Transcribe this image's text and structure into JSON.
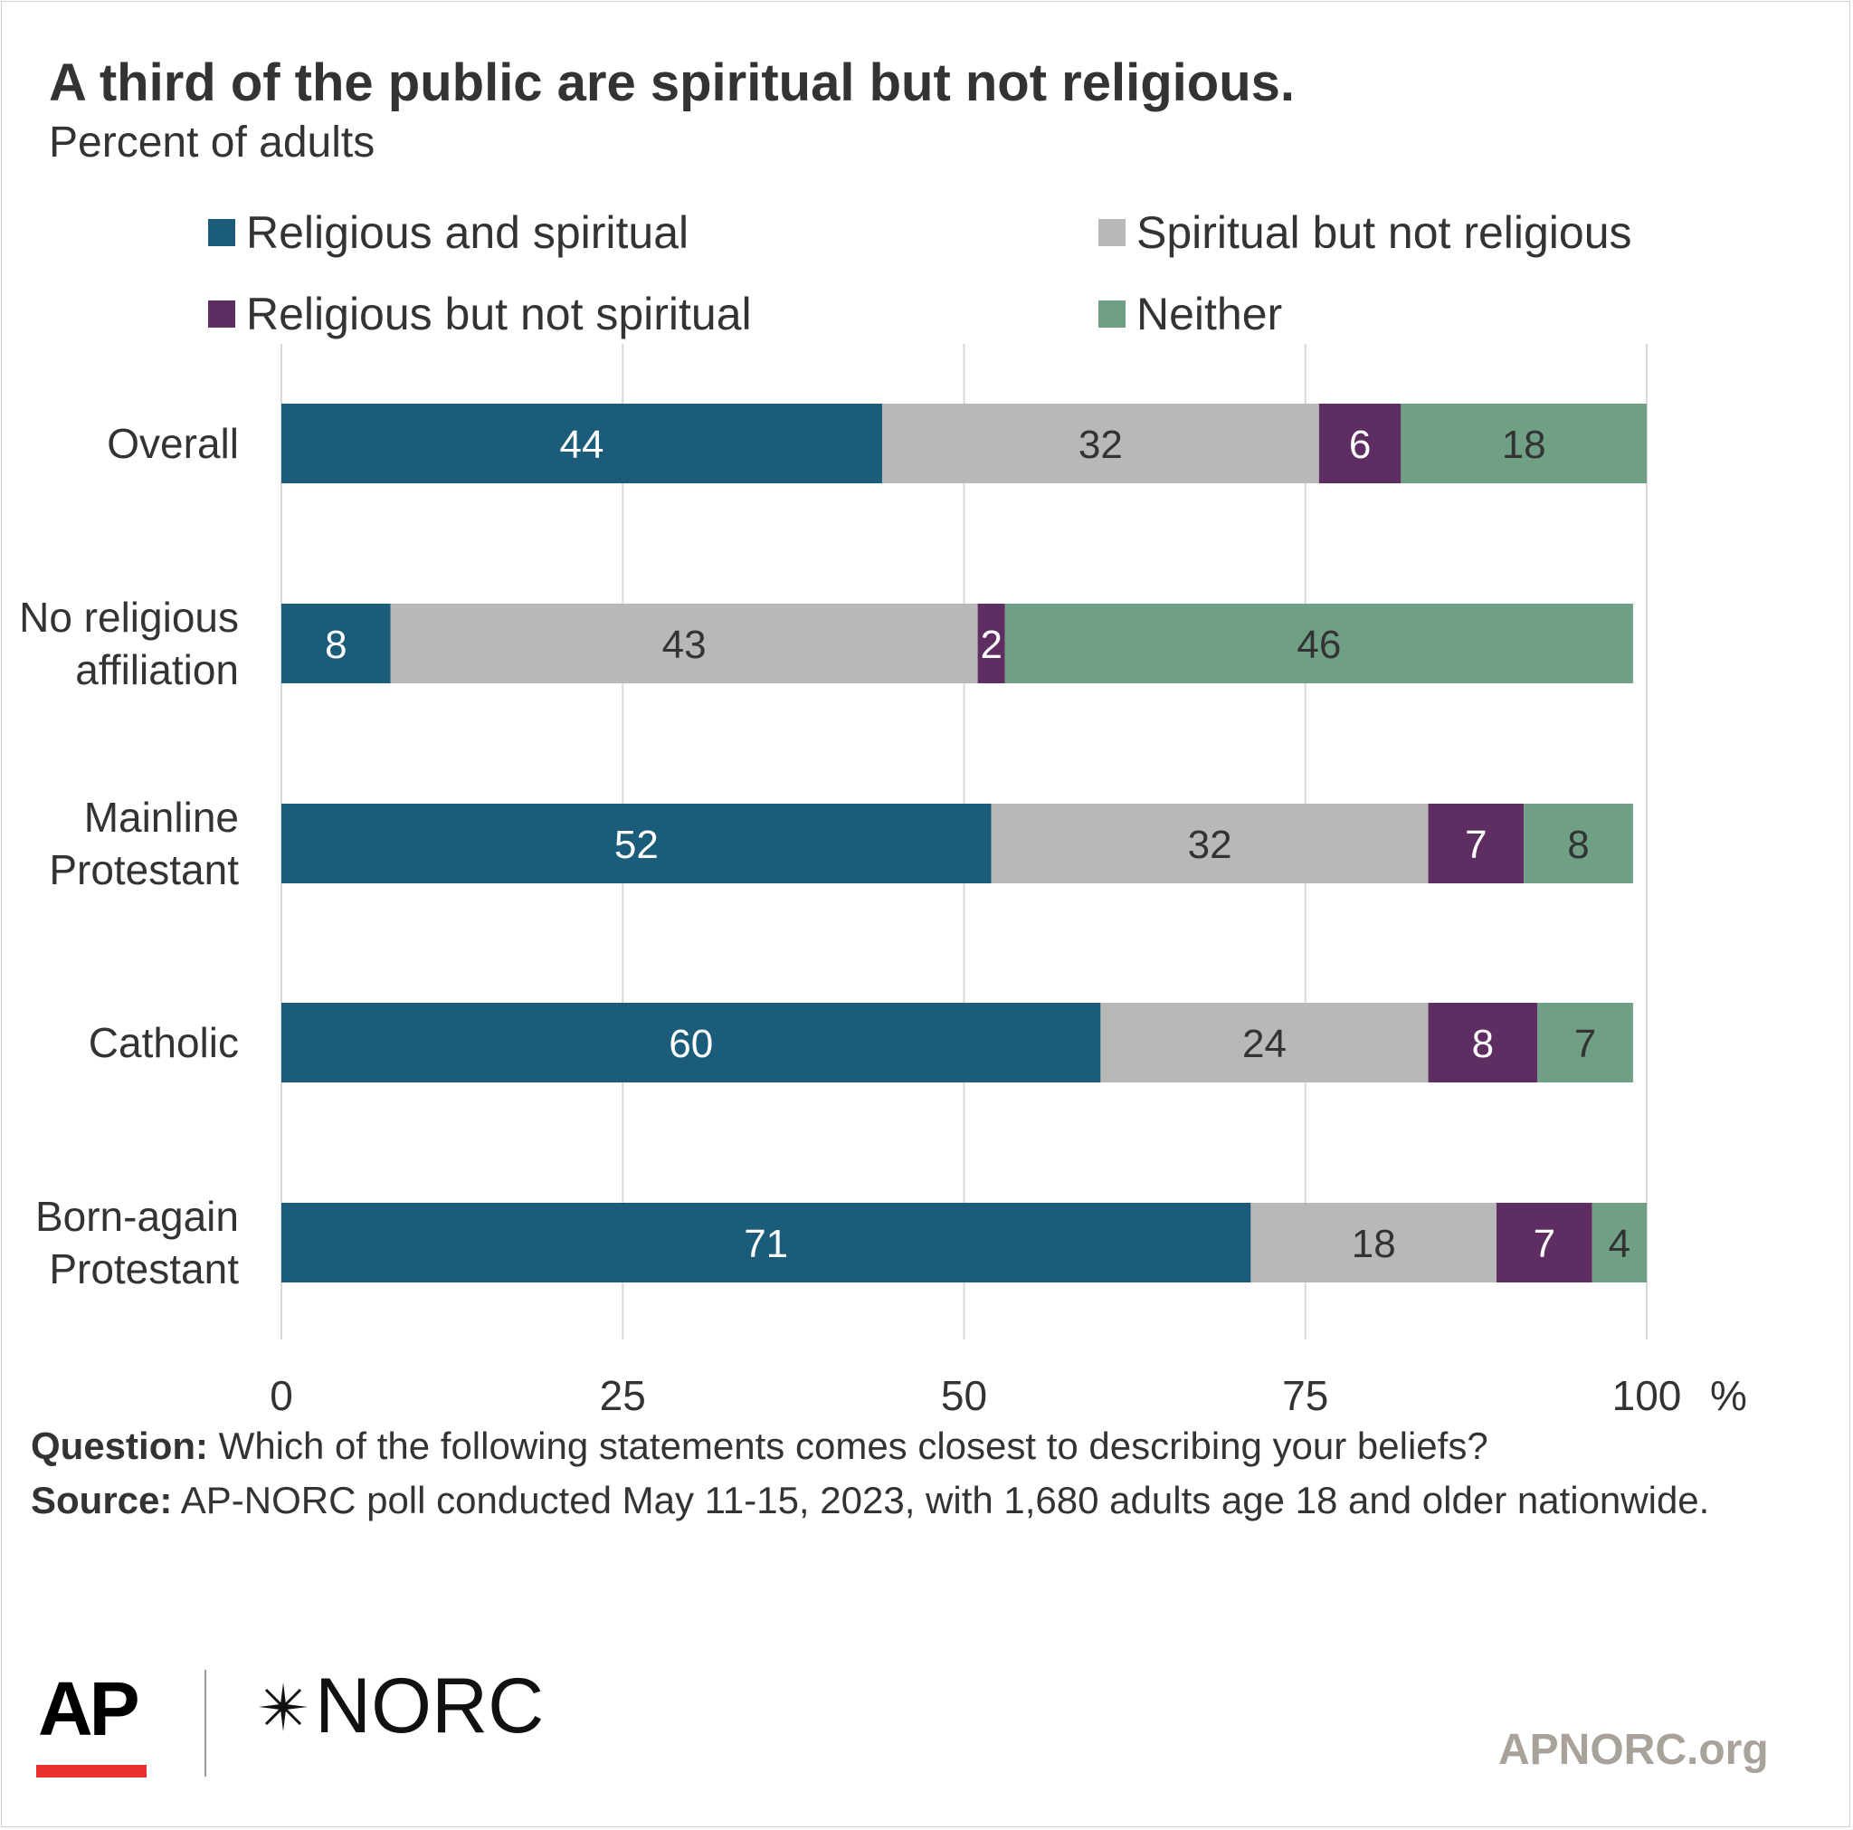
{
  "header": {
    "title": "A third of the public are spiritual but not religious.",
    "subtitle": "Percent of adults"
  },
  "chart_data": {
    "type": "bar",
    "orientation": "horizontal",
    "stacked": true,
    "categories": [
      "Overall",
      "No religious affiliation",
      "Mainline Protestant",
      "Catholic",
      "Born-again Protestant"
    ],
    "category_lines": [
      [
        "Overall"
      ],
      [
        "No religious",
        "affiliation"
      ],
      [
        "Mainline",
        "Protestant"
      ],
      [
        "Catholic"
      ],
      [
        "Born-again",
        "Protestant"
      ]
    ],
    "series": [
      {
        "name": "Religious and spiritual",
        "color": "#1a5c7a",
        "label_color": "#ffffff",
        "values": [
          44,
          8,
          52,
          60,
          71
        ]
      },
      {
        "name": "Spiritual but not religious",
        "color": "#b8b8b8",
        "label_color": "#333333",
        "values": [
          32,
          43,
          32,
          24,
          18
        ]
      },
      {
        "name": "Religious but not spiritual",
        "color": "#5e2d62",
        "label_color": "#ffffff",
        "values": [
          6,
          2,
          7,
          8,
          7
        ]
      },
      {
        "name": "Neither",
        "color": "#6fa086",
        "label_color": "#333333",
        "values": [
          18,
          46,
          8,
          7,
          4
        ]
      }
    ],
    "xlim": [
      0,
      100
    ],
    "x_ticks": [
      "0",
      "25",
      "50",
      "75",
      "100"
    ],
    "x_unit": "%",
    "grid": true,
    "legend_position": "top"
  },
  "notes": {
    "question_label": "Question:",
    "question_text": "Which of the following statements comes closest to describing your beliefs?",
    "source_label": "Source:",
    "source_text": "AP-NORC poll conducted May 11-15, 2023, with 1,680 adults age 18 and older nationwide."
  },
  "branding": {
    "ap_logo": "AP",
    "norc_logo": "NORC",
    "norc_icon": "norc-star-icon",
    "site": "APNORC.org"
  }
}
